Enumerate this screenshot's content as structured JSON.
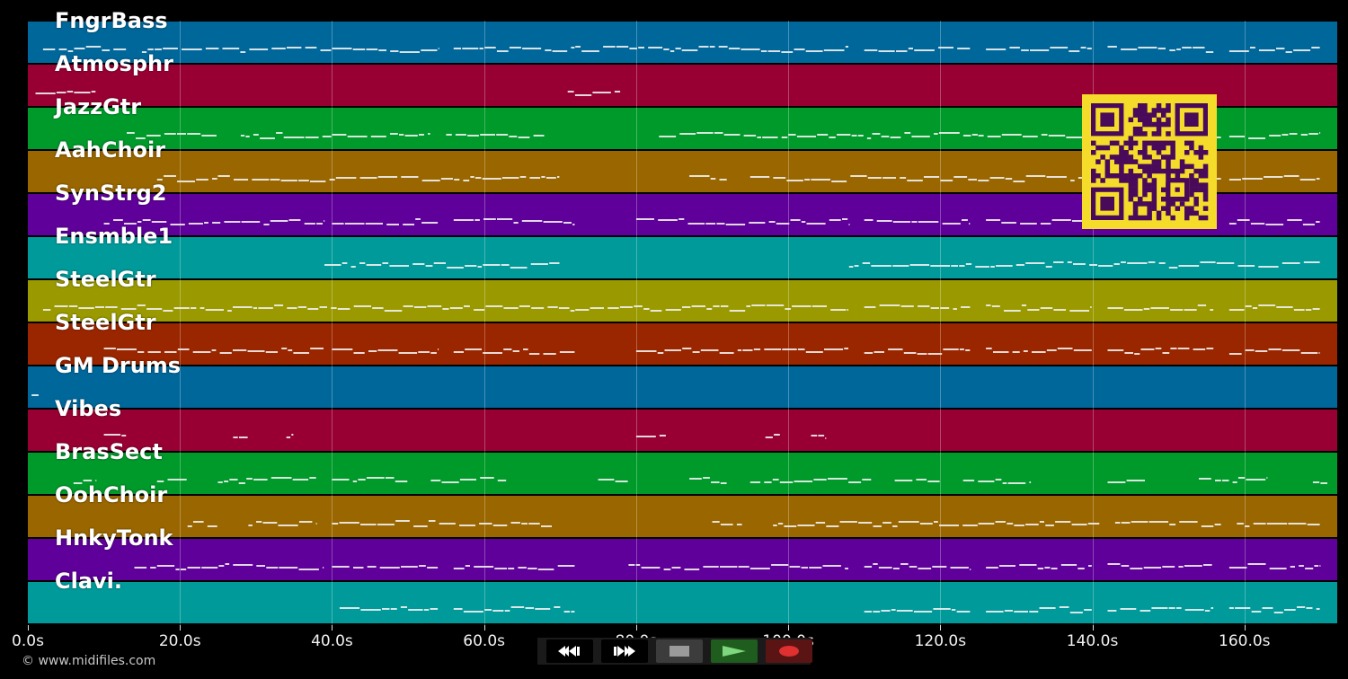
{
  "copyright": "© www.midifiles.com",
  "timeline": {
    "max_seconds": 172.2,
    "ticks": [
      "0.0s",
      "20.0s",
      "40.0s",
      "60.0s",
      "80.0s",
      "100.0s",
      "120.0s",
      "140.0s",
      "160.0s"
    ],
    "tick_seconds": [
      0,
      20,
      40,
      60,
      80,
      100,
      120,
      140,
      160
    ]
  },
  "tracks": [
    {
      "name": "FngrBass",
      "color": "#00679b"
    },
    {
      "name": "Atmosphr",
      "color": "#980033"
    },
    {
      "name": "JazzGtr",
      "color": "#009a2a"
    },
    {
      "name": "AahChoir",
      "color": "#9a6600"
    },
    {
      "name": "SynStrg2",
      "color": "#5f009a"
    },
    {
      "name": "Ensmble1",
      "color": "#009a9a"
    },
    {
      "name": "SteelGtr",
      "color": "#9a9a00"
    },
    {
      "name": "SteelGtr",
      "color": "#9a2600"
    },
    {
      "name": "GM Drums",
      "color": "#00679b"
    },
    {
      "name": "Vibes",
      "color": "#980033"
    },
    {
      "name": "BrasSect",
      "color": "#009a2a"
    },
    {
      "name": "OohChoir",
      "color": "#9a6600"
    },
    {
      "name": "HnkyTonk",
      "color": "#5f009a"
    },
    {
      "name": "Clavi.",
      "color": "#009a9a"
    }
  ],
  "note_segments": [
    [
      [
        2,
        13
      ],
      [
        15,
        40
      ],
      [
        40,
        54
      ],
      [
        56,
        72
      ],
      [
        72,
        86
      ],
      [
        86,
        108
      ],
      [
        110,
        124
      ],
      [
        126,
        140
      ],
      [
        142,
        156
      ],
      [
        158,
        170
      ]
    ],
    [
      [
        1,
        9
      ],
      [
        71,
        78
      ]
    ],
    [
      [
        13,
        25
      ],
      [
        28,
        40
      ],
      [
        40,
        53
      ],
      [
        55,
        68
      ],
      [
        83,
        100
      ],
      [
        100,
        125
      ],
      [
        125,
        140
      ],
      [
        142,
        157
      ],
      [
        158,
        170
      ]
    ],
    [
      [
        17,
        25
      ],
      [
        25,
        70
      ],
      [
        87,
        92
      ],
      [
        95,
        125
      ],
      [
        125,
        141
      ],
      [
        143,
        157
      ],
      [
        158,
        170
      ]
    ],
    [
      [
        10,
        39
      ],
      [
        40,
        54
      ],
      [
        56,
        72
      ],
      [
        80,
        108
      ],
      [
        110,
        124
      ],
      [
        126,
        140
      ],
      [
        142,
        156
      ],
      [
        158,
        170
      ]
    ],
    [
      [
        39,
        70
      ],
      [
        108,
        170
      ]
    ],
    [
      [
        2,
        72
      ],
      [
        72,
        108
      ],
      [
        110,
        124
      ],
      [
        126,
        140
      ],
      [
        142,
        156
      ],
      [
        158,
        170
      ]
    ],
    [
      [
        10,
        39
      ],
      [
        40,
        54
      ],
      [
        56,
        72
      ],
      [
        80,
        108
      ],
      [
        110,
        124
      ],
      [
        126,
        140
      ],
      [
        142,
        156
      ],
      [
        158,
        170
      ]
    ],
    [
      [
        0.5,
        1.5
      ]
    ],
    [
      [
        10,
        13
      ],
      [
        27,
        29
      ],
      [
        34,
        35
      ],
      [
        80,
        84
      ],
      [
        97,
        99
      ],
      [
        103,
        105
      ]
    ],
    [
      [
        6,
        9
      ],
      [
        17,
        21
      ],
      [
        25,
        38
      ],
      [
        40,
        50
      ],
      [
        53,
        63
      ],
      [
        75,
        79
      ],
      [
        87,
        92
      ],
      [
        95,
        111
      ],
      [
        114,
        120
      ],
      [
        123,
        132
      ],
      [
        142,
        147
      ],
      [
        154,
        163
      ],
      [
        169,
        171
      ]
    ],
    [
      [
        21,
        25
      ],
      [
        29,
        38
      ],
      [
        40,
        69
      ],
      [
        90,
        94
      ],
      [
        98,
        125
      ],
      [
        125,
        141
      ],
      [
        143,
        157
      ],
      [
        159,
        170
      ]
    ],
    [
      [
        14,
        39
      ],
      [
        40,
        54
      ],
      [
        56,
        72
      ],
      [
        79,
        108
      ],
      [
        110,
        124
      ],
      [
        126,
        140
      ],
      [
        142,
        156
      ],
      [
        158,
        170
      ]
    ],
    [
      [
        41,
        54
      ],
      [
        56,
        72
      ],
      [
        110,
        124
      ],
      [
        126,
        140
      ],
      [
        142,
        156
      ],
      [
        158,
        170
      ]
    ]
  ],
  "transport": {
    "buttons": [
      {
        "name": "rewind-button",
        "icon": "rewind-icon"
      },
      {
        "name": "fast-forward-button",
        "icon": "fast-forward-icon"
      },
      {
        "name": "stop-button",
        "icon": "stop-icon"
      },
      {
        "name": "play-button",
        "icon": "play-icon"
      },
      {
        "name": "record-button",
        "icon": "record-icon"
      }
    ],
    "colors": {
      "rewind": "#000000",
      "forward": "#000000",
      "stop": "#3c3c3c",
      "play": "#1e5d1e",
      "record": "#5a1414"
    }
  },
  "qr_code": {
    "color": "#f5dc2a",
    "module_color": "#4a0a5a"
  }
}
